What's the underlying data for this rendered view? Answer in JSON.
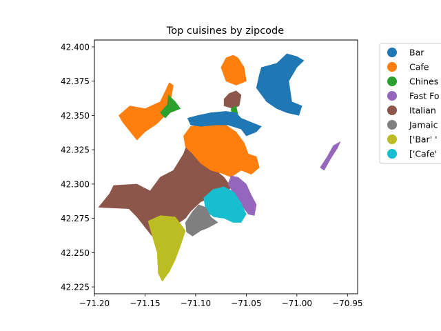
{
  "chart_data": {
    "type": "choropleth map",
    "title": "Top cuisines by zipcode",
    "xlabel": "",
    "ylabel": "",
    "xlim": [
      -71.2,
      -70.94
    ],
    "ylim": [
      42.22,
      42.405
    ],
    "xticks": [
      -71.2,
      -71.15,
      -71.1,
      -71.05,
      -71.0,
      -70.95
    ],
    "xtick_labels": [
      "−71.20",
      "−71.15",
      "−71.10",
      "−71.05",
      "−71.00",
      "−70.95"
    ],
    "yticks": [
      42.225,
      42.25,
      42.275,
      42.3,
      42.325,
      42.35,
      42.375,
      42.4
    ],
    "ytick_labels": [
      "42.225",
      "42.250",
      "42.275",
      "42.300",
      "42.325",
      "42.350",
      "42.375",
      "42.400"
    ],
    "grid": false,
    "legend_position": "outside right (clipped)",
    "categories": [
      {
        "label": "Bar",
        "color": "#1f77b4"
      },
      {
        "label": "Cafe",
        "color": "#ff7f0e"
      },
      {
        "label": "Chines",
        "color": "#2ca02c"
      },
      {
        "label": "Fast Fo",
        "color": "#9467bd"
      },
      {
        "label": "Italian",
        "color": "#8c564b"
      },
      {
        "label": "Jamaic",
        "color": "#7f7f7f"
      },
      {
        "label": "['Bar' '",
        "color": "#bcbd22"
      },
      {
        "label": "['Cafe'",
        "color": "#17becf"
      }
    ],
    "regions": [
      {
        "category": "Italian",
        "points": [
          [
            -71.181,
            42.299
          ],
          [
            -71.158,
            42.3
          ],
          [
            -71.145,
            42.295
          ],
          [
            -71.135,
            42.305
          ],
          [
            -71.122,
            42.31
          ],
          [
            -71.112,
            42.322
          ],
          [
            -71.103,
            42.34
          ],
          [
            -71.09,
            42.338
          ],
          [
            -71.085,
            42.325
          ],
          [
            -71.08,
            42.31
          ],
          [
            -71.072,
            42.305
          ],
          [
            -71.065,
            42.298
          ],
          [
            -71.07,
            42.292
          ],
          [
            -71.085,
            42.29
          ],
          [
            -71.095,
            42.287
          ],
          [
            -71.105,
            42.28
          ],
          [
            -71.11,
            42.275
          ],
          [
            -71.12,
            42.27
          ],
          [
            -71.13,
            42.27
          ],
          [
            -71.143,
            42.262
          ],
          [
            -71.158,
            42.276
          ],
          [
            -71.166,
            42.282
          ],
          [
            -71.196,
            42.283
          ],
          [
            -71.185,
            42.293
          ]
        ]
      },
      {
        "category": "Italian",
        "points": [
          [
            -71.072,
            42.362
          ],
          [
            -71.067,
            42.366
          ],
          [
            -71.06,
            42.368
          ],
          [
            -71.055,
            42.365
          ],
          [
            -71.057,
            42.357
          ],
          [
            -71.063,
            42.355
          ],
          [
            -71.072,
            42.357
          ]
        ]
      },
      {
        "category": "Cafe",
        "points": [
          [
            -71.165,
            42.357
          ],
          [
            -71.15,
            42.355
          ],
          [
            -71.135,
            42.36
          ],
          [
            -71.126,
            42.374
          ],
          [
            -71.122,
            42.372
          ],
          [
            -71.125,
            42.36
          ],
          [
            -71.13,
            42.35
          ],
          [
            -71.138,
            42.344
          ],
          [
            -71.15,
            42.338
          ],
          [
            -71.158,
            42.332
          ],
          [
            -71.172,
            42.345
          ],
          [
            -71.176,
            42.35
          ]
        ]
      },
      {
        "category": "Cafe",
        "points": [
          [
            -71.063,
            42.394
          ],
          [
            -71.058,
            42.392
          ],
          [
            -71.052,
            42.385
          ],
          [
            -71.05,
            42.375
          ],
          [
            -71.06,
            42.372
          ],
          [
            -71.07,
            42.375
          ],
          [
            -71.075,
            42.385
          ],
          [
            -71.07,
            42.392
          ]
        ]
      },
      {
        "category": "Cafe",
        "points": [
          [
            -71.112,
            42.335
          ],
          [
            -71.105,
            42.342
          ],
          [
            -71.095,
            42.343
          ],
          [
            -71.08,
            42.346
          ],
          [
            -71.07,
            42.343
          ],
          [
            -71.06,
            42.338
          ],
          [
            -71.052,
            42.33
          ],
          [
            -71.048,
            42.322
          ],
          [
            -71.04,
            42.32
          ],
          [
            -71.037,
            42.312
          ],
          [
            -71.045,
            42.307
          ],
          [
            -71.055,
            42.31
          ],
          [
            -71.065,
            42.305
          ],
          [
            -71.075,
            42.308
          ],
          [
            -71.085,
            42.31
          ],
          [
            -71.095,
            42.315
          ],
          [
            -71.103,
            42.322
          ],
          [
            -71.11,
            42.327
          ]
        ]
      },
      {
        "category": "Chines",
        "points": [
          [
            -71.127,
            42.365
          ],
          [
            -71.12,
            42.36
          ],
          [
            -71.115,
            42.355
          ],
          [
            -71.125,
            42.352
          ],
          [
            -71.13,
            42.348
          ],
          [
            -71.135,
            42.352
          ],
          [
            -71.128,
            42.358
          ]
        ]
      },
      {
        "category": "Chines",
        "points": [
          [
            -71.065,
            42.355
          ],
          [
            -71.06,
            42.357
          ],
          [
            -71.058,
            42.35
          ],
          [
            -71.064,
            42.347
          ]
        ]
      },
      {
        "category": "Bar",
        "points": [
          [
            -71.035,
            42.385
          ],
          [
            -71.02,
            42.388
          ],
          [
            -71.01,
            42.395
          ],
          [
            -71.0,
            42.393
          ],
          [
            -70.993,
            42.39
          ],
          [
            -71.0,
            42.385
          ],
          [
            -71.008,
            42.375
          ],
          [
            -71.005,
            42.36
          ],
          [
            -70.995,
            42.357
          ],
          [
            -70.998,
            42.35
          ],
          [
            -71.01,
            42.352
          ],
          [
            -71.02,
            42.355
          ],
          [
            -71.03,
            42.36
          ],
          [
            -71.04,
            42.37
          ],
          [
            -71.037,
            42.38
          ]
        ]
      },
      {
        "category": "Bar",
        "points": [
          [
            -71.108,
            42.348
          ],
          [
            -71.098,
            42.35
          ],
          [
            -71.085,
            42.352
          ],
          [
            -71.07,
            42.353
          ],
          [
            -71.06,
            42.352
          ],
          [
            -71.055,
            42.348
          ],
          [
            -71.045,
            42.345
          ],
          [
            -71.035,
            42.342
          ],
          [
            -71.04,
            42.338
          ],
          [
            -71.05,
            42.335
          ],
          [
            -71.055,
            42.34
          ],
          [
            -71.068,
            42.343
          ],
          [
            -71.08,
            42.343
          ],
          [
            -71.095,
            42.342
          ],
          [
            -71.105,
            42.343
          ]
        ]
      },
      {
        "category": "Fast Fo",
        "points": [
          [
            -70.957,
            42.331
          ],
          [
            -70.96,
            42.326
          ],
          [
            -70.967,
            42.318
          ],
          [
            -70.973,
            42.31
          ],
          [
            -70.977,
            42.312
          ],
          [
            -70.97,
            42.32
          ],
          [
            -70.964,
            42.328
          ]
        ]
      },
      {
        "category": "Fast Fo",
        "points": [
          [
            -71.065,
            42.306
          ],
          [
            -71.058,
            42.305
          ],
          [
            -71.05,
            42.3
          ],
          [
            -71.045,
            42.292
          ],
          [
            -71.04,
            42.285
          ],
          [
            -71.042,
            42.277
          ],
          [
            -71.048,
            42.278
          ],
          [
            -71.055,
            42.285
          ],
          [
            -71.062,
            42.292
          ],
          [
            -71.068,
            42.3
          ]
        ]
      },
      {
        "category": "['Cafe'",
        "points": [
          [
            -71.092,
            42.29
          ],
          [
            -71.083,
            42.296
          ],
          [
            -71.072,
            42.298
          ],
          [
            -71.062,
            42.294
          ],
          [
            -71.055,
            42.286
          ],
          [
            -71.05,
            42.278
          ],
          [
            -71.055,
            42.272
          ],
          [
            -71.063,
            42.272
          ],
          [
            -71.072,
            42.275
          ],
          [
            -71.082,
            42.276
          ],
          [
            -71.09,
            42.28
          ]
        ]
      },
      {
        "category": "Jamaic",
        "points": [
          [
            -71.103,
            42.28
          ],
          [
            -71.097,
            42.285
          ],
          [
            -71.09,
            42.283
          ],
          [
            -71.085,
            42.276
          ],
          [
            -71.078,
            42.272
          ],
          [
            -71.088,
            42.268
          ],
          [
            -71.095,
            42.266
          ],
          [
            -71.103,
            42.262
          ],
          [
            -71.109,
            42.265
          ],
          [
            -71.11,
            42.272
          ]
        ]
      },
      {
        "category": "['Bar' '",
        "points": [
          [
            -71.147,
            42.273
          ],
          [
            -71.135,
            42.277
          ],
          [
            -71.12,
            42.276
          ],
          [
            -71.11,
            42.266
          ],
          [
            -71.115,
            42.255
          ],
          [
            -71.12,
            42.245
          ],
          [
            -71.126,
            42.236
          ],
          [
            -71.133,
            42.229
          ],
          [
            -71.137,
            42.235
          ],
          [
            -71.138,
            42.25
          ],
          [
            -71.142,
            42.26
          ]
        ]
      }
    ]
  }
}
